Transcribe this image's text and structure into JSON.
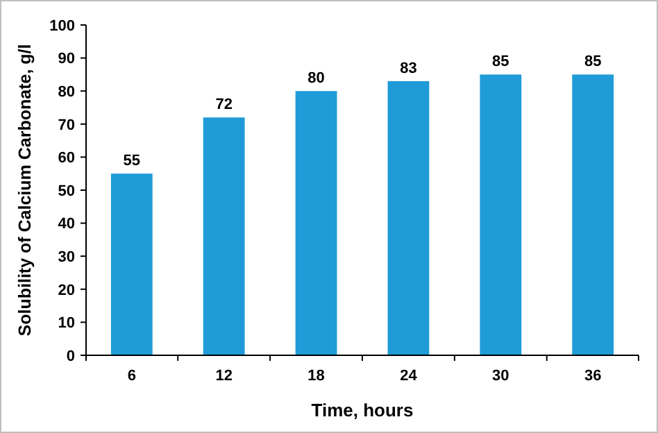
{
  "chart_data": {
    "type": "bar",
    "xlabel": "Time, hours",
    "ylabel": "Solubility of Calcium Carbonate, g/l",
    "categories": [
      "6",
      "12",
      "18",
      "24",
      "30",
      "36"
    ],
    "values": [
      55,
      72,
      80,
      83,
      85,
      85
    ],
    "color": "#1f9bd7",
    "ylim": [
      0,
      100
    ],
    "yticks": [
      0,
      10,
      20,
      30,
      40,
      50,
      60,
      70,
      80,
      90,
      100
    ],
    "grid": false,
    "data_labels": true
  }
}
